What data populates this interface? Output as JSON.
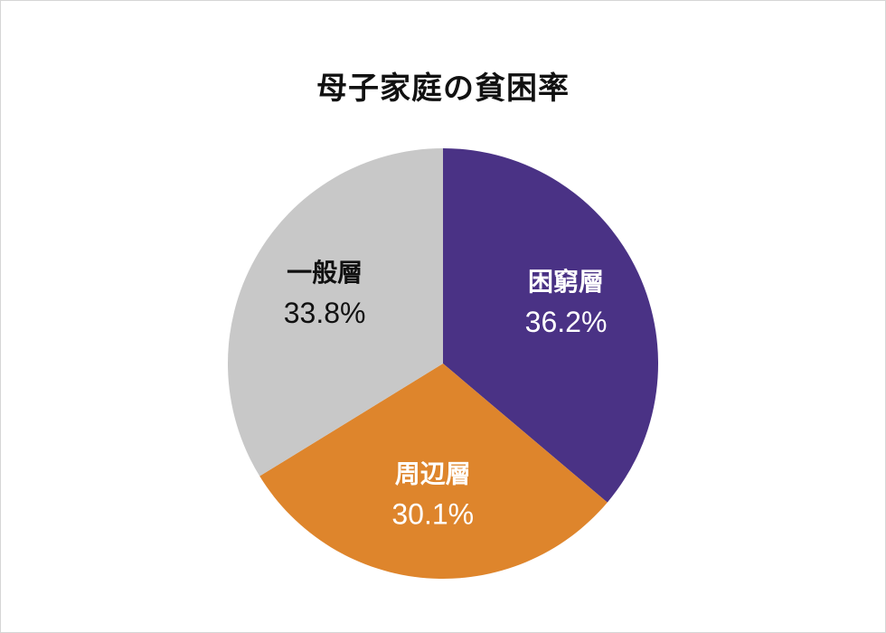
{
  "chart_data": {
    "type": "pie",
    "title": "母子家庭の貧困率",
    "unit": "%",
    "slices": [
      {
        "label": "困窮層",
        "value": 36.2,
        "value_text": "36.2%",
        "color": "#4a3285",
        "text_color": "#ffffff"
      },
      {
        "label": "周辺層",
        "value": 30.1,
        "value_text": "30.1%",
        "color": "#de852c",
        "text_color": "#ffffff"
      },
      {
        "label": "一般層",
        "value": 33.8,
        "value_text": "33.8%",
        "color": "#c8c8c8",
        "text_color": "#111111"
      }
    ],
    "start": "12 o'clock",
    "direction": "clockwise",
    "legend": "none"
  }
}
